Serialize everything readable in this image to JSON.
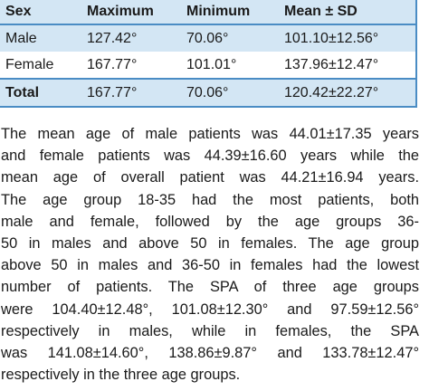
{
  "table": {
    "header": [
      "Sex",
      "Maximum",
      "Minimum",
      "Mean ± SD"
    ],
    "rows": [
      [
        "Male",
        "127.42°",
        "70.06°",
        "101.10±12.56°"
      ],
      [
        "Female",
        "167.77°",
        "101.01°",
        "137.96±12.47°"
      ],
      [
        "Total",
        "167.77°",
        "70.06°",
        "120.42±22.27°"
      ]
    ]
  },
  "paragraph": {
    "lines": [
      "The mean age of male patients was 44.01±17.35 years",
      "and female patients was 44.39±16.60 years while the",
      "mean age of overall patient was 44.21±16.94 years.",
      "The age group 18-35 had the most patients, both",
      "male and female, followed by the age groups 36-",
      "50 in males and above 50 in females. The age group",
      "above 50 in males and 36-50 in females had the lowest",
      "number of patients. The SPA of three age groups",
      "were 104.40±12.48°, 101.08±12.30° and 97.59±12.56°",
      "respectively in males, while in females, the SPA",
      "was 141.08±14.60°, 138.86±9.87° and 133.78±12.47°",
      "respectively in the three age groups."
    ]
  }
}
